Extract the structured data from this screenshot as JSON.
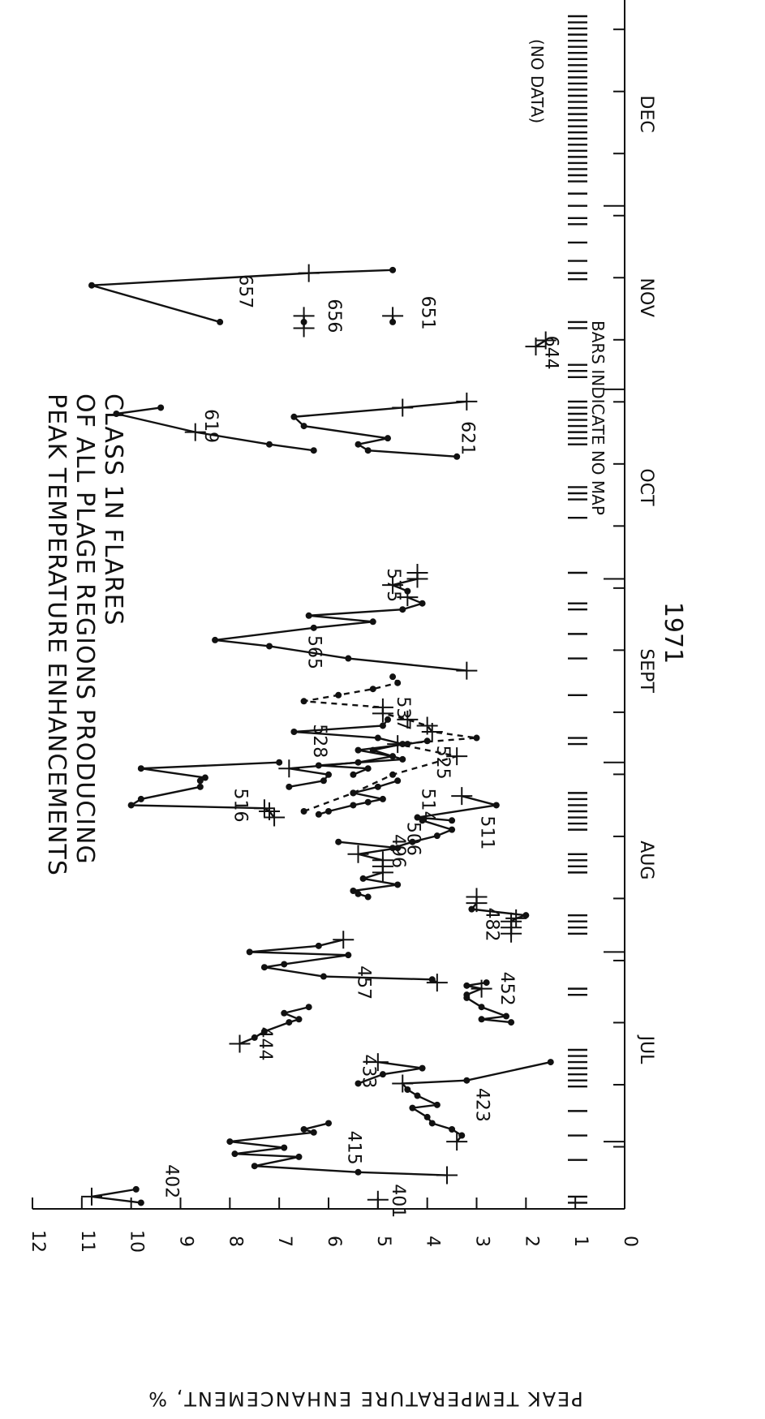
{
  "chart_data": {
    "type": "line",
    "title": "PEAK TEMPERATURE ENHANCEMENTS OF ALL PLAGE REGIONS PRODUCING CLASS 1N FLARES",
    "ylabel": "PEAK TEMPERATURE ENHANCEMENT, %",
    "year_label": "1971",
    "ylim": [
      0,
      12
    ],
    "y_ticks": [
      "0",
      "1",
      "2",
      "3",
      "4",
      "5",
      "6",
      "7",
      "8",
      "9",
      "10",
      "11",
      "12"
    ],
    "xlim": [
      "Jun 20",
      "Dec 31"
    ],
    "months": [
      "JUL",
      "AUG",
      "SEPT",
      "OCT",
      "NOV",
      "DEC"
    ],
    "annotations": [
      "BARS INDICATE NO MAP",
      "(NO DATA)"
    ],
    "no_map_days": [
      1,
      2,
      8,
      12,
      16,
      20,
      21,
      22,
      23,
      24,
      25,
      26,
      35,
      36,
      45,
      46,
      47,
      48,
      55,
      56,
      57,
      58,
      62,
      63,
      64,
      65,
      66,
      67,
      68,
      76,
      77,
      84,
      90,
      94,
      98,
      99,
      104,
      113,
      116,
      117,
      118,
      125,
      126,
      127,
      128,
      129,
      130,
      131,
      132,
      136,
      137,
      138,
      144,
      145,
      152,
      153,
      155,
      158,
      161,
      162,
      164,
      166,
      168,
      169,
      170,
      171,
      172,
      173,
      174,
      175,
      176,
      177,
      178,
      179,
      180,
      181,
      182,
      183,
      184,
      185,
      186,
      187,
      188,
      189,
      190,
      191,
      192,
      193,
      194,
      195
    ],
    "series": [
      {
        "name": "401",
        "label_pos": [
          1.3,
          4.7
        ],
        "points": [
          [
            1.5,
            5.0,
            "c"
          ]
        ]
      },
      {
        "name": "402",
        "label_pos": [
          4.5,
          9.3
        ],
        "points": [
          [
            1,
            9.8,
            "d"
          ],
          [
            2,
            10.8,
            "c"
          ],
          [
            3.2,
            9.9,
            "d"
          ]
        ]
      },
      {
        "name": "415",
        "label_pos": [
          10,
          5.6
        ],
        "points": [
          [
            5.5,
            3.6,
            "c"
          ],
          [
            6,
            5.4,
            "d"
          ],
          [
            7,
            7.5,
            "d"
          ],
          [
            8.5,
            6.6,
            "d"
          ],
          [
            9,
            7.9,
            "d"
          ],
          [
            10,
            6.9,
            "d"
          ],
          [
            11,
            8.0,
            "d"
          ],
          [
            12.5,
            6.3,
            "d"
          ],
          [
            13,
            6.5,
            "d"
          ],
          [
            14,
            6.0,
            "d"
          ]
        ]
      },
      {
        "name": "423",
        "label_pos": [
          17,
          3.0
        ],
        "points": [
          [
            11,
            3.4,
            "c"
          ],
          [
            12,
            3.3,
            "d"
          ],
          [
            13,
            3.5,
            "d"
          ],
          [
            14,
            3.9,
            "d"
          ],
          [
            15,
            4.0,
            "d"
          ],
          [
            16.5,
            4.3,
            "d"
          ],
          [
            17,
            3.8,
            "d"
          ],
          [
            18.5,
            4.2,
            "d"
          ],
          [
            19.5,
            4.4,
            "d"
          ],
          [
            20.5,
            4.5,
            "c"
          ],
          [
            21,
            3.2,
            "d"
          ],
          [
            24,
            1.5,
            "d"
          ]
        ]
      },
      {
        "name": "433",
        "label_pos": [
          22.5,
          5.3
        ],
        "points": [
          [
            20.5,
            5.4,
            "d"
          ],
          [
            22,
            4.9,
            "d"
          ],
          [
            23,
            4.1,
            "d"
          ],
          [
            24,
            5.0,
            "c"
          ]
        ]
      },
      {
        "name": "444",
        "label_pos": [
          27,
          7.4
        ],
        "points": [
          [
            27,
            7.8,
            "c"
          ],
          [
            28,
            7.5,
            "d"
          ],
          [
            29,
            7.3,
            "d"
          ],
          [
            30.5,
            6.8,
            "d"
          ],
          [
            31,
            6.6,
            "d"
          ],
          [
            32,
            6.9,
            "d"
          ],
          [
            33,
            6.4,
            "d"
          ]
        ]
      },
      {
        "name": "452",
        "label_pos": [
          36,
          2.5
        ],
        "points": [
          [
            30.5,
            2.3,
            "d"
          ],
          [
            31,
            2.9,
            "d"
          ],
          [
            31.5,
            2.4,
            "d"
          ],
          [
            33,
            2.9,
            "d"
          ],
          [
            34.5,
            3.2,
            "d"
          ],
          [
            35,
            3.2,
            "d"
          ],
          [
            36,
            2.9,
            "c"
          ],
          [
            36.5,
            3.2,
            "d"
          ],
          [
            37,
            2.8,
            "d"
          ]
        ]
      },
      {
        "name": "457",
        "label_pos": [
          37,
          5.4
        ],
        "points": [
          [
            37,
            3.8,
            "c"
          ],
          [
            37.5,
            3.9,
            "d"
          ],
          [
            38,
            6.1,
            "d"
          ],
          [
            39.5,
            7.3,
            "d"
          ],
          [
            40,
            6.9,
            "d"
          ],
          [
            41.5,
            5.6,
            "d"
          ],
          [
            42,
            7.6,
            "d"
          ],
          [
            43,
            6.2,
            "d"
          ],
          [
            44,
            5.7,
            "c"
          ]
        ]
      },
      {
        "name": "482",
        "label_pos": [
          46.5,
          2.8
        ],
        "points": [
          [
            45,
            2.3,
            "c"
          ],
          [
            46,
            2.3,
            "c"
          ],
          [
            47,
            2.3,
            "c"
          ],
          [
            47.5,
            2.2,
            "c"
          ],
          [
            48,
            2.0,
            "d"
          ],
          [
            49,
            3.1,
            "d"
          ],
          [
            50,
            3.0,
            "c"
          ],
          [
            51,
            3.0,
            "c"
          ]
        ]
      },
      {
        "name": "496",
        "label_pos": [
          58.5,
          4.7
        ],
        "points": [
          [
            51,
            5.2,
            "d"
          ],
          [
            51.5,
            5.4,
            "d"
          ],
          [
            52,
            5.5,
            "d"
          ],
          [
            53,
            4.6,
            "d"
          ],
          [
            54,
            5.3,
            "d"
          ],
          [
            55,
            4.9,
            "c"
          ],
          [
            56,
            4.9,
            "c"
          ],
          [
            57,
            4.9,
            "c"
          ],
          [
            58,
            5.4,
            "c"
          ],
          [
            59,
            4.6,
            "d"
          ],
          [
            60,
            5.8,
            "d"
          ]
        ]
      },
      {
        "name": "506",
        "label_pos": [
          60.5,
          4.4
        ],
        "points": [
          [
            59,
            4.7,
            "d"
          ],
          [
            60,
            4.3,
            "d"
          ],
          [
            61,
            3.8,
            "d"
          ],
          [
            62,
            3.5,
            "d"
          ],
          [
            63.5,
            4.1,
            "d"
          ]
        ]
      },
      {
        "name": "511",
        "label_pos": [
          61.5,
          2.9
        ],
        "points": [
          [
            63.5,
            3.5,
            "d"
          ],
          [
            64,
            4.2,
            "d"
          ],
          [
            66,
            2.6,
            "d"
          ],
          [
            67.5,
            3.3,
            "c"
          ]
        ]
      },
      {
        "name": "514",
        "label_pos": [
          66,
          4.1
        ],
        "points": [
          [
            64.5,
            6.2,
            "d"
          ],
          [
            65,
            6.0,
            "d"
          ],
          [
            66,
            5.5,
            "d"
          ],
          [
            66.5,
            5.2,
            "d"
          ],
          [
            67,
            4.9,
            "d"
          ],
          [
            68,
            5.5,
            "d"
          ],
          [
            69,
            5.0,
            "d"
          ],
          [
            70,
            4.6,
            "d"
          ]
        ]
      },
      {
        "name": "516",
        "label_pos": [
          66,
          7.9
        ],
        "points": [
          [
            64,
            7.1,
            "c"
          ],
          [
            65,
            7.2,
            "c"
          ],
          [
            65.5,
            7.3,
            "c"
          ],
          [
            66,
            10.0,
            "d"
          ],
          [
            67,
            9.8,
            "d"
          ],
          [
            69,
            8.6,
            "d"
          ],
          [
            70,
            8.6,
            "d"
          ],
          [
            70.5,
            8.5,
            "d"
          ],
          [
            72,
            9.8,
            "d"
          ],
          [
            73,
            7.0,
            "d"
          ]
        ]
      },
      {
        "name": "525",
        "label_pos": [
          73,
          3.8
        ],
        "points": [
          [
            69,
            6.8,
            "d"
          ],
          [
            70,
            6.1,
            "d"
          ],
          [
            71,
            6.0,
            "d"
          ],
          [
            72,
            6.8,
            "c"
          ],
          [
            73,
            5.4,
            "d"
          ],
          [
            74,
            4.7,
            "d"
          ],
          [
            75,
            5.4,
            "d"
          ],
          [
            76,
            4.4,
            "d"
          ],
          [
            76.5,
            4.0,
            "d"
          ]
        ]
      },
      {
        "name": "528",
        "label_pos": [
          76.5,
          6.3
        ],
        "points": [
          [
            71,
            5.5,
            "d"
          ],
          [
            72,
            5.2,
            "d"
          ],
          [
            72.5,
            6.2,
            "d"
          ],
          [
            73.5,
            4.5,
            "d"
          ],
          [
            75,
            5.1,
            "d"
          ],
          [
            76,
            4.5,
            "d"
          ],
          [
            77,
            5.0,
            "d"
          ],
          [
            78,
            6.7,
            "d"
          ],
          [
            79,
            4.9,
            "d"
          ],
          [
            80,
            4.8,
            "d"
          ]
        ]
      },
      {
        "name": "537",
        "label_pos": [
          81,
          4.6
        ],
        "dashed": true,
        "points": [
          [
            65,
            6.5,
            "d"
          ],
          [
            68,
            5.5,
            "d"
          ],
          [
            71,
            4.7,
            "d"
          ],
          [
            74,
            3.4,
            "c"
          ],
          [
            76,
            4.6,
            "c"
          ],
          [
            77,
            3.0,
            "d"
          ],
          [
            78,
            3.9,
            "c"
          ],
          [
            79,
            4.0,
            "c"
          ],
          [
            80,
            4.4,
            "c"
          ],
          [
            81,
            4.9,
            "c"
          ],
          [
            82,
            4.9,
            "c"
          ],
          [
            83,
            6.5,
            "d"
          ],
          [
            84,
            5.8,
            "d"
          ],
          [
            85,
            5.1,
            "d"
          ],
          [
            86,
            4.6,
            "d"
          ],
          [
            87,
            4.7,
            "d"
          ]
        ]
      },
      {
        "name": "565",
        "label_pos": [
          91,
          6.4
        ],
        "points": [
          [
            88,
            3.2,
            "c"
          ],
          [
            90,
            5.6,
            "d"
          ],
          [
            92,
            7.2,
            "d"
          ],
          [
            93,
            8.3,
            "d"
          ],
          [
            95,
            6.3,
            "d"
          ],
          [
            96,
            5.1,
            "d"
          ],
          [
            97,
            6.4,
            "d"
          ],
          [
            98,
            4.5,
            "d"
          ],
          [
            99,
            4.1,
            "d"
          ],
          [
            100,
            4.4,
            "c"
          ]
        ]
      },
      {
        "name": "575",
        "label_pos": [
          102,
          4.8
        ],
        "points": [
          [
            101,
            4.4,
            "d"
          ],
          [
            102,
            4.7,
            "c"
          ],
          [
            103,
            4.2,
            "c"
          ],
          [
            104,
            4.2,
            "c"
          ]
        ]
      },
      {
        "name": "619",
        "label_pos": [
          128,
          8.5
        ],
        "points": [
          [
            124,
            6.3,
            "d"
          ],
          [
            125,
            7.2,
            "d"
          ],
          [
            127,
            8.7,
            "c"
          ],
          [
            130,
            10.3,
            "d"
          ],
          [
            131,
            9.4,
            "d"
          ]
        ]
      },
      {
        "name": "621",
        "label_pos": [
          126,
          3.3
        ],
        "points": [
          [
            123,
            3.4,
            "d"
          ],
          [
            124,
            5.2,
            "d"
          ],
          [
            125,
            5.4,
            "d"
          ],
          [
            126,
            4.8,
            "d"
          ],
          [
            128,
            6.5,
            "d"
          ],
          [
            129.5,
            6.7,
            "d"
          ],
          [
            131,
            4.5,
            "c"
          ],
          [
            132,
            3.2,
            "c"
          ]
        ]
      },
      {
        "name": "644",
        "label_pos": [
          140,
          1.6
        ],
        "points": [
          [
            141,
            1.8,
            "c"
          ],
          [
            142,
            1.6,
            "c"
          ]
        ]
      },
      {
        "name": "651",
        "label_pos": [
          146.5,
          4.1
        ],
        "points": [
          [
            145,
            4.7,
            "d"
          ],
          [
            146,
            4.7,
            "c"
          ]
        ]
      },
      {
        "name": "656",
        "label_pos": [
          146,
          6.0
        ],
        "points": [
          [
            144,
            6.5,
            "c"
          ],
          [
            145,
            6.5,
            "d"
          ],
          [
            146,
            6.5,
            "c"
          ]
        ]
      },
      {
        "name": "657",
        "label_pos": [
          150,
          7.8
        ],
        "points": [
          [
            145,
            8.2,
            "d"
          ],
          [
            151,
            10.8,
            "d"
          ],
          [
            153,
            6.4,
            "c"
          ],
          [
            153.5,
            4.7,
            "d"
          ]
        ]
      }
    ]
  }
}
